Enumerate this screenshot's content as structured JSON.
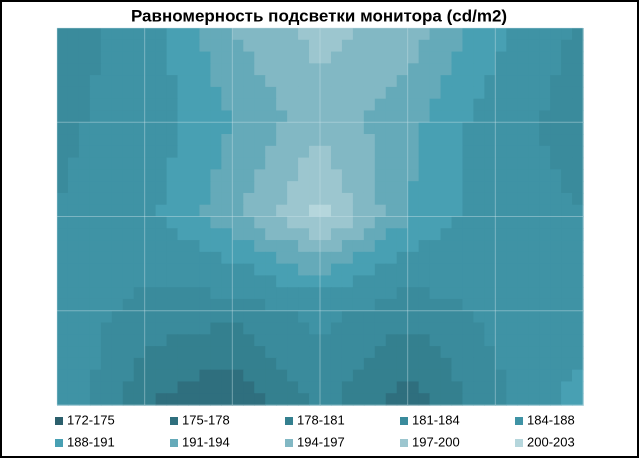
{
  "chart_data": {
    "type": "contour",
    "title": "Равномерность  подсветки монитора (cd/m2)",
    "rows": [
      [
        182,
        186,
        194,
        198,
        196,
        189,
        183
      ],
      [
        183,
        186,
        191,
        196,
        192,
        186,
        182
      ],
      [
        184,
        187,
        193,
        201,
        191,
        186,
        184
      ],
      [
        186,
        183,
        182,
        185,
        182,
        185,
        186
      ],
      [
        188,
        178,
        175,
        182,
        176,
        183,
        190
      ]
    ],
    "levels": [
      172,
      175,
      178,
      181,
      184,
      188,
      191,
      194,
      197,
      200,
      203
    ],
    "grid": true,
    "legend": "bottom",
    "series": [
      {
        "name": "172-175",
        "color": "#2b5f6c"
      },
      {
        "name": "175-178",
        "color": "#2f6f7e"
      },
      {
        "name": "178-181",
        "color": "#34808f"
      },
      {
        "name": "181-184",
        "color": "#3a8b9c"
      },
      {
        "name": "184-188",
        "color": "#3f93a5"
      },
      {
        "name": "188-191",
        "color": "#48a0b3"
      },
      {
        "name": "191-194",
        "color": "#65aab9"
      },
      {
        "name": "194-197",
        "color": "#82b8c4"
      },
      {
        "name": "197-200",
        "color": "#9cc6cf"
      },
      {
        "name": "200-203",
        "color": "#b5d6dc"
      }
    ]
  }
}
